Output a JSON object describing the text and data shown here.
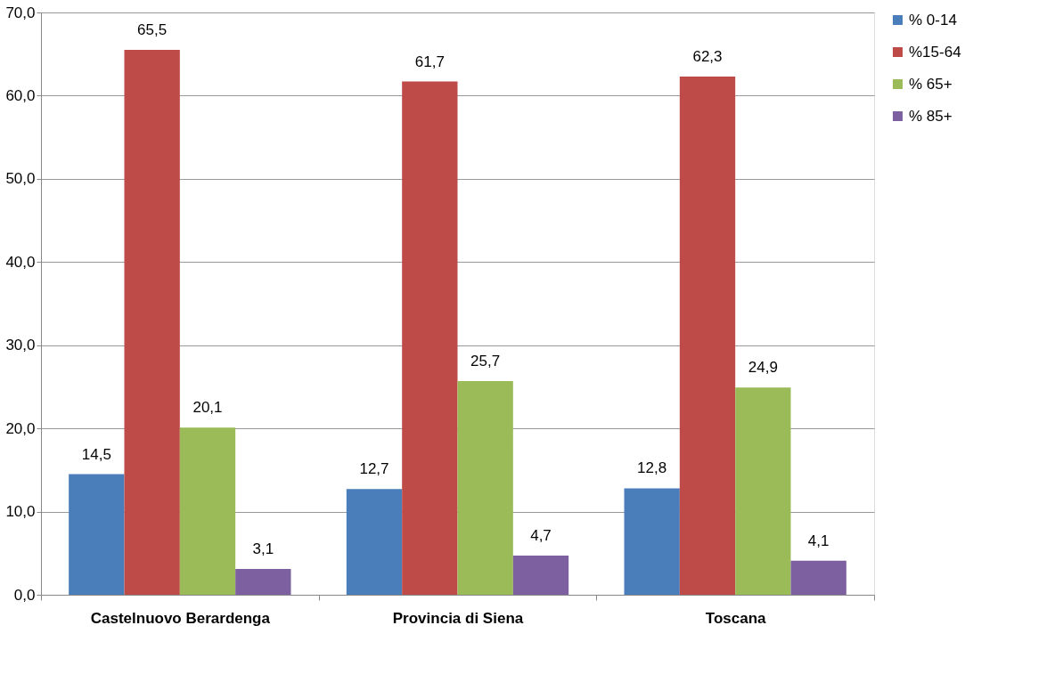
{
  "chart_data": {
    "type": "bar",
    "categories": [
      "Castelnuovo Berardenga",
      "Provincia di Siena",
      "Toscana"
    ],
    "series": [
      {
        "name": "% 0-14",
        "color": "#4a7ebb",
        "values": [
          14.5,
          12.7,
          12.8
        ],
        "value_labels": [
          "14,5",
          "12,7",
          "12,8"
        ]
      },
      {
        "name": "%15-64",
        "color": "#be4b48",
        "values": [
          65.5,
          61.7,
          62.3
        ],
        "value_labels": [
          "65,5",
          "61,7",
          "62,3"
        ]
      },
      {
        "name": "% 65+",
        "color": "#9bbb59",
        "values": [
          20.1,
          25.7,
          24.9
        ],
        "value_labels": [
          "20,1",
          "25,7",
          "24,9"
        ]
      },
      {
        "name": "% 85+",
        "color": "#7d60a0",
        "values": [
          3.1,
          4.7,
          4.1
        ],
        "value_labels": [
          "3,1",
          "4,7",
          "4,1"
        ]
      }
    ],
    "ylim": [
      0,
      70
    ],
    "yticks": [
      {
        "value": 0,
        "label": "0,0"
      },
      {
        "value": 10,
        "label": "10,0"
      },
      {
        "value": 20,
        "label": "20,0"
      },
      {
        "value": 30,
        "label": "30,0"
      },
      {
        "value": 40,
        "label": "40,0"
      },
      {
        "value": 50,
        "label": "50,0"
      },
      {
        "value": 60,
        "label": "60,0"
      },
      {
        "value": 70,
        "label": "70,0"
      }
    ],
    "grid": "y",
    "legend": "right"
  }
}
